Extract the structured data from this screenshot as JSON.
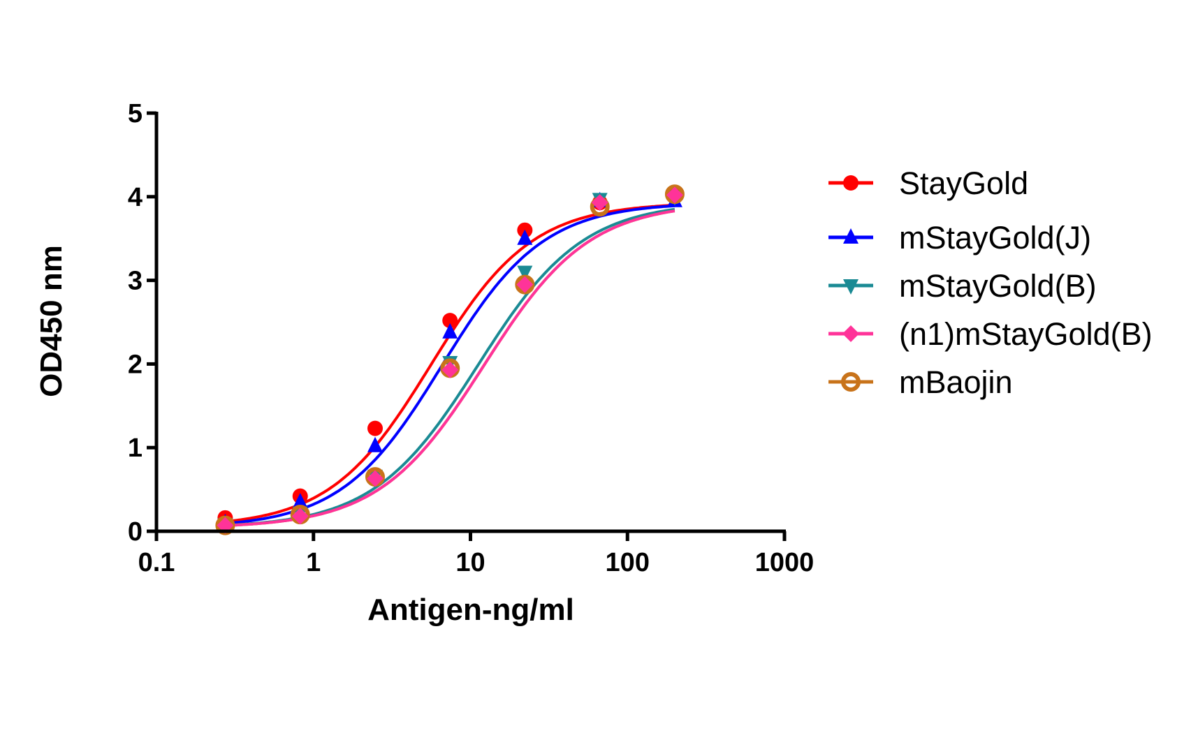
{
  "chart_data": {
    "type": "line",
    "title": "",
    "xlabel": "Antigen-ng/ml",
    "ylabel": "OD450 nm",
    "xscale": "log",
    "xlim": [
      0.1,
      1000
    ],
    "ylim": [
      0,
      5
    ],
    "xticks": [
      "0.1",
      "1",
      "10",
      "100",
      "1000"
    ],
    "yticks": [
      "0",
      "1",
      "2",
      "3",
      "4",
      "5"
    ],
    "grid": false,
    "legend_position": "right",
    "x": [
      0.274,
      0.823,
      2.47,
      7.41,
      22.2,
      66.7,
      200
    ],
    "series": [
      {
        "name": "StayGold",
        "color": "#ff0000",
        "marker": "circle",
        "values": [
          0.16,
          0.42,
          1.23,
          2.52,
          3.6,
          3.93,
          4.04
        ]
      },
      {
        "name": "mStayGold(J)",
        "color": "#0000ff",
        "marker": "triangle-up",
        "values": [
          0.1,
          0.35,
          1.02,
          2.38,
          3.5,
          3.95,
          3.95
        ]
      },
      {
        "name": "mStayGold(B)",
        "color": "#1a8a94",
        "marker": "triangle-down",
        "values": [
          0.08,
          0.22,
          0.66,
          2.02,
          3.1,
          3.97,
          4.0
        ]
      },
      {
        "name": "(n1)mStayGold(B)",
        "color": "#ff3399",
        "marker": "diamond",
        "values": [
          0.07,
          0.18,
          0.63,
          1.93,
          2.95,
          3.93,
          4.02
        ]
      },
      {
        "name": "mBaojin",
        "color": "#c8731a",
        "marker": "open-circle",
        "values": [
          0.07,
          0.2,
          0.65,
          1.95,
          2.95,
          3.88,
          4.03
        ]
      }
    ]
  }
}
